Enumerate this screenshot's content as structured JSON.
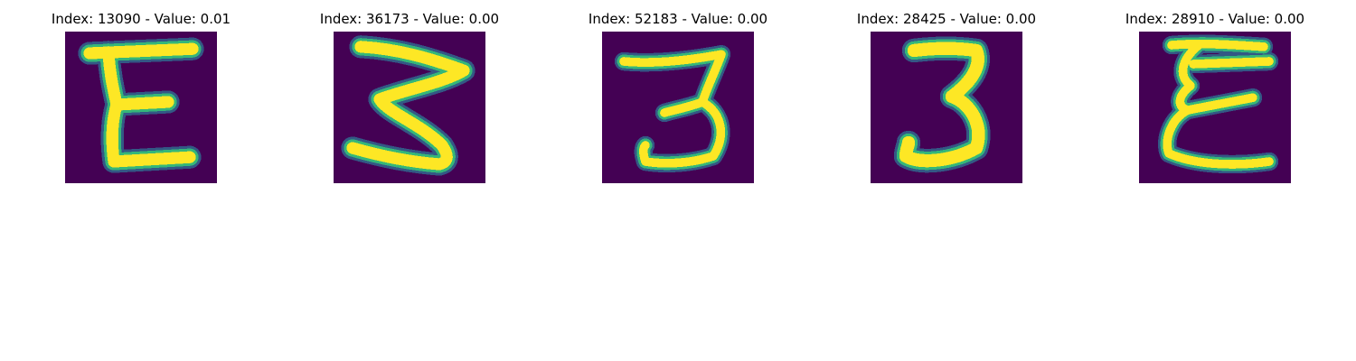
{
  "colors": {
    "background": "#440154",
    "stroke_low": "#31688e",
    "stroke_mid": "#35b779",
    "stroke_high": "#fde725"
  },
  "panels": [
    {
      "title": "Index: 13090 - Value: 0.01",
      "glyph": "E"
    },
    {
      "title": "Index: 36173 - Value: 0.00",
      "glyph": "3"
    },
    {
      "title": "Index: 52183 - Value: 0.00",
      "glyph": "3"
    },
    {
      "title": "Index: 28425 - Value: 0.00",
      "glyph": "3"
    },
    {
      "title": "Index: 28910 - Value: 0.00",
      "glyph": "E"
    }
  ]
}
